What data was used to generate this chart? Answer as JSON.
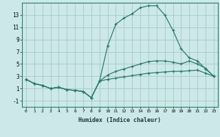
{
  "xlabel": "Humidex (Indice chaleur)",
  "x_values": [
    0,
    1,
    2,
    3,
    4,
    5,
    6,
    7,
    8,
    9,
    10,
    11,
    12,
    13,
    14,
    15,
    16,
    17,
    18,
    19,
    20,
    21,
    22,
    23
  ],
  "line1": [
    2.5,
    1.8,
    1.5,
    1.0,
    1.2,
    0.8,
    0.7,
    0.5,
    -0.5,
    2.2,
    8.0,
    11.5,
    12.5,
    13.2,
    14.2,
    14.5,
    14.5,
    13.0,
    10.5,
    7.5,
    6.0,
    5.5,
    4.2,
    3.0
  ],
  "line2": [
    2.5,
    1.8,
    1.5,
    1.0,
    1.2,
    0.8,
    0.7,
    0.5,
    -0.5,
    2.2,
    3.2,
    3.8,
    4.2,
    4.6,
    5.0,
    5.4,
    5.5,
    5.5,
    5.3,
    5.0,
    5.5,
    5.0,
    4.3,
    3.0
  ],
  "line3": [
    2.5,
    1.8,
    1.5,
    1.0,
    1.2,
    0.8,
    0.7,
    0.5,
    -0.5,
    2.2,
    2.5,
    2.7,
    2.9,
    3.1,
    3.3,
    3.5,
    3.6,
    3.7,
    3.8,
    3.8,
    3.9,
    4.0,
    3.5,
    3.0
  ],
  "line_color": "#2a7a6a",
  "bg_color": "#cce8e8",
  "grid_color": "#aacccc",
  "yticks": [
    -1,
    1,
    3,
    5,
    7,
    9,
    11,
    13
  ],
  "ylim": [
    -2,
    15
  ],
  "xlim": [
    -0.5,
    23.5
  ]
}
